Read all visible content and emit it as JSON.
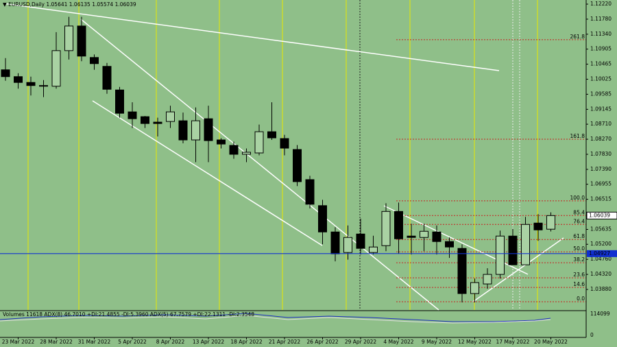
{
  "chart_data": {
    "type": "candlestick",
    "title": "EURUSD,Daily",
    "categories": [
      null,
      "23 Mar 2022",
      null,
      null,
      "28 Mar 2022",
      null,
      null,
      "31 Mar 2022",
      null,
      null,
      "5 Apr 2022",
      null,
      null,
      "8 Apr 2022",
      null,
      null,
      "13 Apr 2022",
      null,
      null,
      "18 Apr 2022",
      null,
      null,
      "21 Apr 2022",
      null,
      null,
      "26 Apr 2022",
      null,
      null,
      "29 Apr 2022",
      null,
      null,
      "4 May 2022",
      null,
      null,
      "9 May 2022",
      null,
      null,
      "12 May 2022",
      null,
      null,
      "17 May 2022",
      null,
      null,
      "20 May 2022"
    ],
    "open": [
      1.103,
      1.101,
      1.0993,
      1.0984,
      1.0982,
      1.1086,
      1.1158,
      1.1066,
      1.104,
      1.0971,
      1.0907,
      1.0893,
      1.0877,
      1.0879,
      1.0881,
      1.0825,
      1.0887,
      1.0825,
      1.0809,
      1.0783,
      1.0787,
      1.0849,
      1.0829,
      1.0797,
      1.0709,
      1.0633,
      1.0556,
      1.0496,
      1.055,
      1.0496,
      1.0516,
      1.0616,
      1.0544,
      1.054,
      1.0556,
      1.0528,
      1.0508,
      1.0376,
      1.0404,
      1.0432,
      1.0544,
      1.046,
      1.0582,
      1.05641
    ],
    "high": [
      1.1064,
      1.102,
      1.101,
      1.1,
      1.114,
      1.1185,
      1.1185,
      1.1075,
      1.105,
      1.098,
      1.0935,
      1.0895,
      1.089,
      1.0925,
      1.0905,
      1.092,
      1.0925,
      1.083,
      1.082,
      1.08,
      1.087,
      1.0935,
      1.084,
      1.081,
      1.072,
      1.065,
      1.057,
      1.0575,
      1.0595,
      1.0545,
      1.064,
      1.0642,
      1.058,
      1.058,
      1.0575,
      1.054,
      1.052,
      1.042,
      1.045,
      1.056,
      1.0565,
      1.06,
      1.0608,
      1.06135
    ],
    "low": [
      1.0998,
      1.0975,
      1.0955,
      1.095,
      1.0975,
      1.106,
      1.1055,
      1.103,
      1.096,
      1.089,
      1.086,
      1.086,
      1.0835,
      1.086,
      1.0815,
      1.076,
      1.076,
      1.08,
      1.077,
      1.076,
      1.078,
      1.0825,
      1.078,
      1.069,
      1.0625,
      1.052,
      1.047,
      1.0475,
      1.049,
      1.049,
      1.05,
      1.0492,
      1.049,
      1.05,
      1.049,
      1.048,
      1.035,
      1.035,
      1.039,
      1.042,
      1.046,
      1.046,
      1.053,
      1.05574
    ],
    "close": [
      1.101,
      1.0993,
      1.0984,
      1.0982,
      1.1086,
      1.1158,
      1.107,
      1.1048,
      1.0973,
      1.0903,
      1.0887,
      1.0873,
      1.0873,
      1.0907,
      1.0825,
      1.0881,
      1.0823,
      1.0813,
      1.0783,
      1.0789,
      1.0849,
      1.0831,
      1.0801,
      1.0703,
      1.0637,
      1.0556,
      1.0492,
      1.054,
      1.0508,
      1.0512,
      1.0616,
      1.0536,
      1.054,
      1.0558,
      1.0528,
      1.0512,
      1.0376,
      1.0408,
      1.0432,
      1.0544,
      1.046,
      1.0578,
      1.0562,
      1.06039
    ],
    "up_color": "#a9d2a3",
    "down_color": "#000000",
    "ylim": [
      1.0328,
      1.1234
    ],
    "yticks": [
      {
        "value": 1.1222,
        "label": "1.12220"
      },
      {
        "value": 1.1178,
        "label": "1.11780"
      },
      {
        "value": 1.1134,
        "label": "1.11340"
      },
      {
        "value": 1.10905,
        "label": "1.10905"
      },
      {
        "value": 1.10465,
        "label": "1.10465"
      },
      {
        "value": 1.10025,
        "label": "1.10025"
      },
      {
        "value": 1.09585,
        "label": "1.09585"
      },
      {
        "value": 1.09145,
        "label": "1.09145"
      },
      {
        "value": 1.0871,
        "label": "1.08710"
      },
      {
        "value": 1.0827,
        "label": "1.08270"
      },
      {
        "value": 1.0783,
        "label": "1.07830"
      },
      {
        "value": 1.0739,
        "label": "1.07390"
      },
      {
        "value": 1.06955,
        "label": "1.06955"
      },
      {
        "value": 1.06515,
        "label": "1.06515"
      },
      {
        "value": 1.05635,
        "label": "1.05635"
      },
      {
        "value": 1.052,
        "label": "1.05200"
      },
      {
        "value": 1.0476,
        "label": "1.04760"
      },
      {
        "value": 1.0432,
        "label": "1.04320"
      },
      {
        "value": 1.0388,
        "label": "1.03880"
      }
    ],
    "hline": {
      "value": 1.04927,
      "color": "#1030d0"
    },
    "fib_color": "#c82020",
    "fib_levels": [
      {
        "level": "261.8",
        "price": 1.1118
      },
      {
        "level": "161.8",
        "price": 1.0827
      },
      {
        "level": "100.0",
        "price": 1.0647
      },
      {
        "level": "85.4",
        "price": 1.0604
      },
      {
        "level": "76.4",
        "price": 1.0578
      },
      {
        "level": "61.8",
        "price": 1.0534
      },
      {
        "level": "50.0",
        "price": 1.0498
      },
      {
        "level": "38.2",
        "price": 1.0466
      },
      {
        "level": "23.6",
        "price": 1.0422
      },
      {
        "level": "14.6",
        "price": 1.0394
      },
      {
        "level": "0.0",
        "price": 1.0352
      }
    ],
    "indicator_text": "Volumes 11618  ADX(8) 46.7010 +DI:21.4855 -DI:5.3960  ADX(5) 67.7579 +DI:22.1311 -DI:2.3548",
    "volume_yticks": [
      114099,
      0
    ]
  }
}
